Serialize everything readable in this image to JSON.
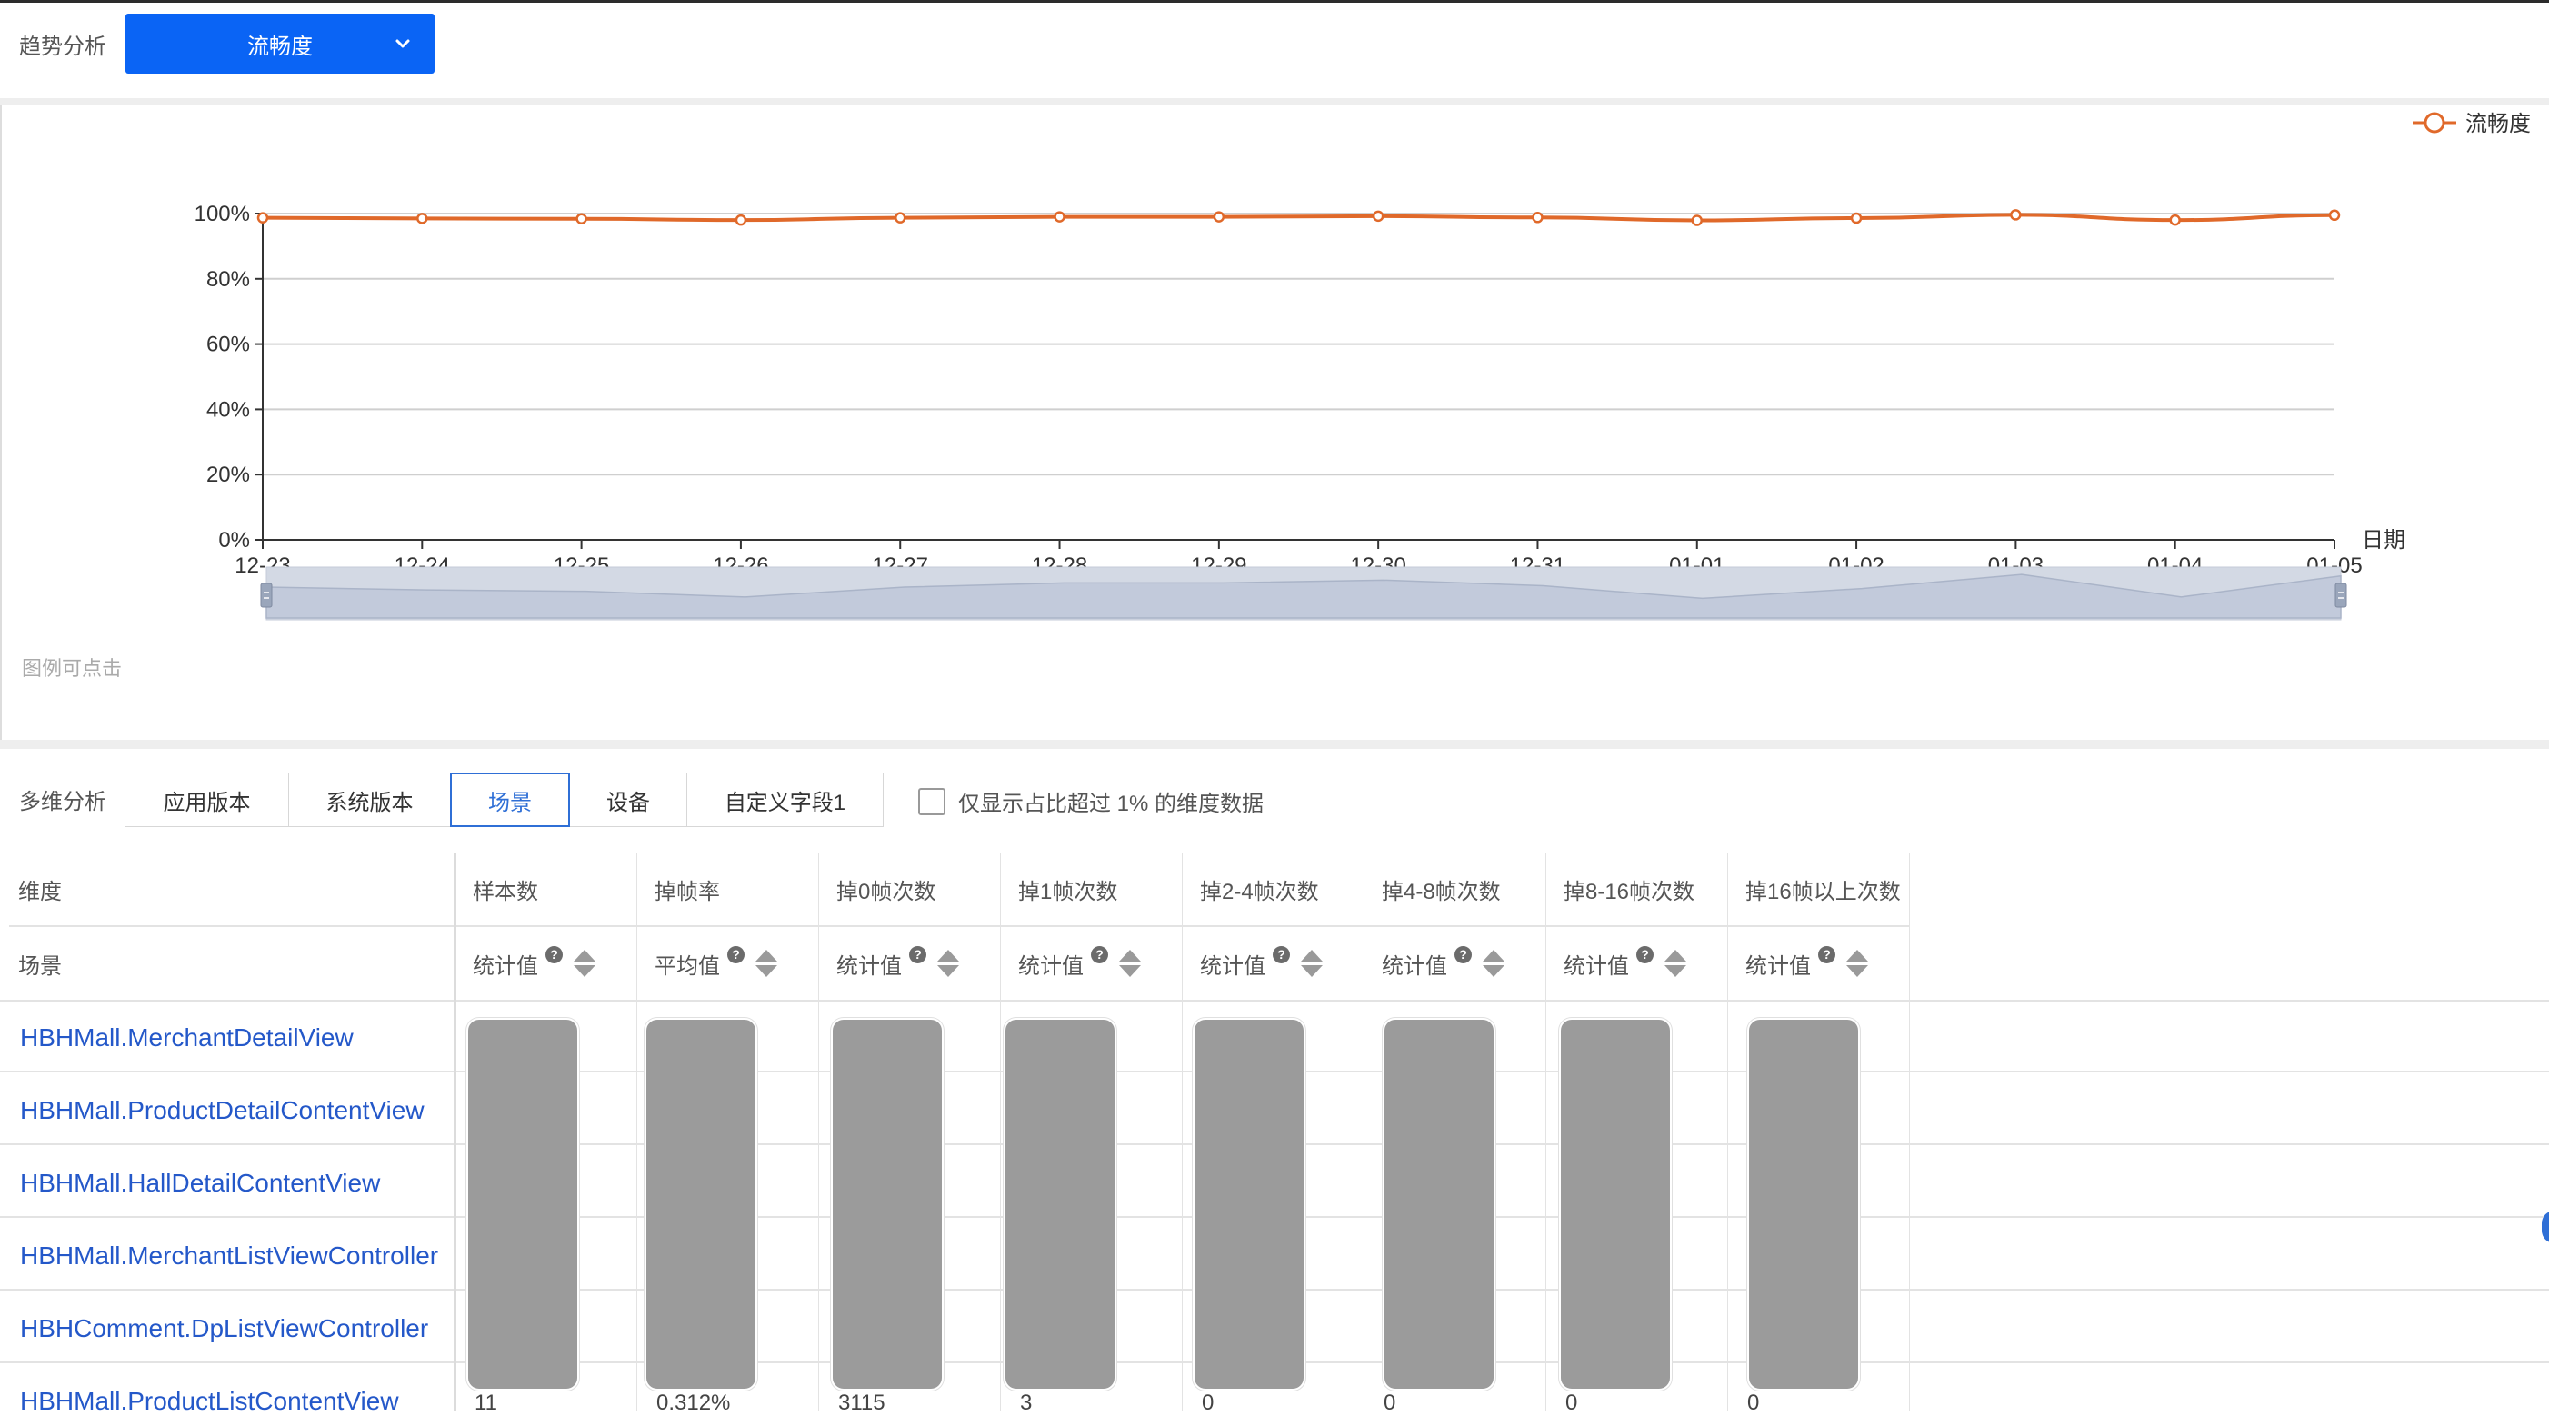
{
  "trend": {
    "label": "趋势分析",
    "metric_select": {
      "value": "流畅度",
      "icon": "chevron-down-icon"
    },
    "hint": "图例可点击"
  },
  "chart_data": {
    "type": "line",
    "categories": [
      "12-23",
      "12-24",
      "12-25",
      "12-26",
      "12-27",
      "12-28",
      "12-29",
      "12-30",
      "12-31",
      "01-01",
      "01-02",
      "01-03",
      "01-04",
      "01-05"
    ],
    "series": [
      {
        "name": "流畅度",
        "color": "#e0692a",
        "values": [
          98.7,
          98.5,
          98.4,
          98.0,
          98.7,
          99.0,
          99.0,
          99.2,
          98.8,
          97.9,
          98.6,
          99.6,
          98.0,
          99.5
        ]
      }
    ],
    "xlabel": "日期",
    "ylabel": "",
    "ylim": [
      0,
      100
    ],
    "yticks": [
      "0%",
      "20%",
      "40%",
      "60%",
      "80%",
      "100%"
    ],
    "grid": true,
    "legend": "top-right",
    "data_zoom": true
  },
  "multidim": {
    "label": "多维分析",
    "tabs": [
      {
        "label": "应用版本",
        "active": false
      },
      {
        "label": "系统版本",
        "active": false
      },
      {
        "label": "场景",
        "active": true
      },
      {
        "label": "设备",
        "active": false
      },
      {
        "label": "自定义字段1",
        "active": false
      }
    ],
    "filter": {
      "checked": false,
      "label": "仅显示占比超过 1% 的维度数据"
    }
  },
  "table": {
    "columns": [
      {
        "header": "维度",
        "sub": "场景"
      },
      {
        "header": "样本数",
        "sub": "统计值"
      },
      {
        "header": "掉帧率",
        "sub": "平均值"
      },
      {
        "header": "掉0帧次数",
        "sub": "统计值"
      },
      {
        "header": "掉1帧次数",
        "sub": "统计值"
      },
      {
        "header": "掉2-4帧次数",
        "sub": "统计值"
      },
      {
        "header": "掉4-8帧次数",
        "sub": "统计值"
      },
      {
        "header": "掉8-16帧次数",
        "sub": "统计值"
      },
      {
        "header": "掉16帧以上次数",
        "sub": "统计值"
      }
    ],
    "rows": [
      "HBHMall.MerchantDetailView",
      "HBHMall.ProductDetailContentView",
      "HBHMall.HallDetailContentView",
      "HBHMall.MerchantListViewController",
      "HBHComment.DpListViewController",
      "HBHMall.ProductListContentView"
    ],
    "last_row_values": [
      "11",
      "0.312%",
      "3115",
      "3",
      "0",
      "0",
      "0",
      "0"
    ]
  }
}
